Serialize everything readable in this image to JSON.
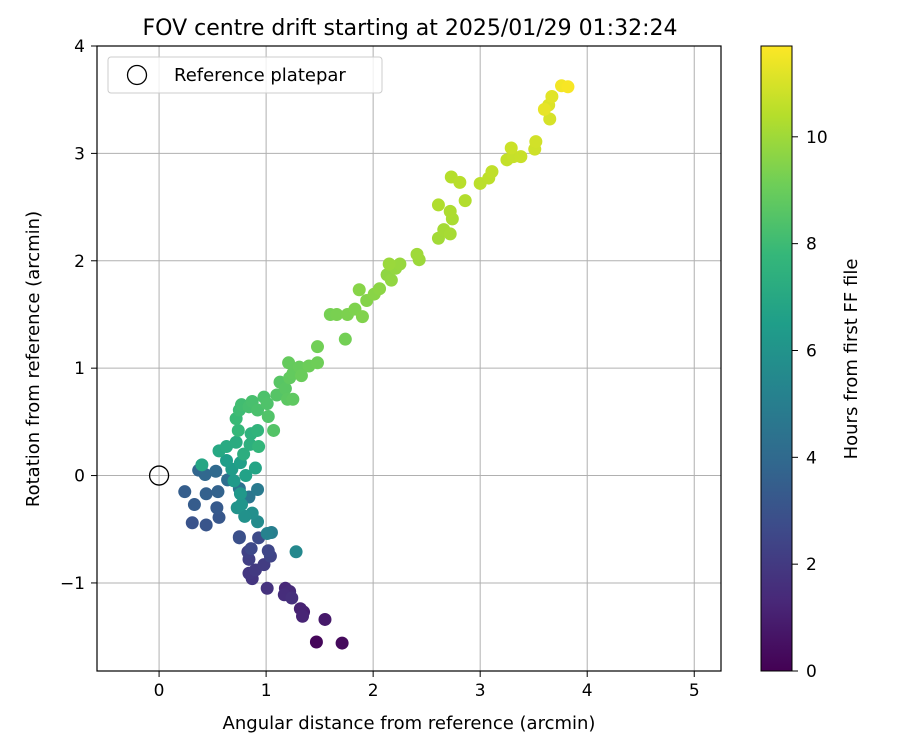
{
  "chart_data": {
    "type": "scatter",
    "title": "FOV centre drift starting at 2025/01/29 01:32:24",
    "xlabel": "Angular distance from reference (arcmin)",
    "ylabel": "Rotation from reference (arcmin)",
    "xlim": [
      -0.58,
      5.25
    ],
    "ylim": [
      -1.82,
      4.0
    ],
    "xticks": [
      0,
      1,
      2,
      3,
      4,
      5
    ],
    "yticks": [
      -1,
      0,
      1,
      2,
      3,
      4
    ],
    "grid": true,
    "legend": {
      "placement": "upper-left",
      "entries": [
        {
          "label": "Reference platepar",
          "marker": "open-circle"
        }
      ]
    },
    "reference_point": {
      "x": 0,
      "y": 0
    },
    "colorbar": {
      "label": "Hours from first FF file",
      "colormap": "viridis",
      "range": [
        0,
        11.7
      ],
      "ticks": [
        0,
        2,
        4,
        6,
        8,
        10
      ]
    },
    "points": [
      {
        "x": 1.47,
        "y": -1.55,
        "h": 0.2
      },
      {
        "x": 1.71,
        "y": -1.56,
        "h": 0.3
      },
      {
        "x": 1.55,
        "y": -1.34,
        "h": 0.8
      },
      {
        "x": 1.35,
        "y": -1.27,
        "h": 1.0
      },
      {
        "x": 1.32,
        "y": -1.24,
        "h": 1.1
      },
      {
        "x": 1.34,
        "y": -1.31,
        "h": 1.2
      },
      {
        "x": 1.18,
        "y": -1.05,
        "h": 1.3
      },
      {
        "x": 1.22,
        "y": -1.08,
        "h": 1.4
      },
      {
        "x": 1.17,
        "y": -1.11,
        "h": 1.5
      },
      {
        "x": 1.24,
        "y": -1.14,
        "h": 1.6
      },
      {
        "x": 1.01,
        "y": -1.05,
        "h": 1.7
      },
      {
        "x": 0.87,
        "y": -0.96,
        "h": 1.8
      },
      {
        "x": 0.84,
        "y": -0.91,
        "h": 1.9
      },
      {
        "x": 0.9,
        "y": -0.88,
        "h": 2.0
      },
      {
        "x": 0.98,
        "y": -0.83,
        "h": 2.1
      },
      {
        "x": 0.84,
        "y": -0.78,
        "h": 2.2
      },
      {
        "x": 0.83,
        "y": -0.71,
        "h": 2.3
      },
      {
        "x": 1.04,
        "y": -0.75,
        "h": 2.4
      },
      {
        "x": 1.02,
        "y": -0.7,
        "h": 2.5
      },
      {
        "x": 0.86,
        "y": -0.68,
        "h": 2.6
      },
      {
        "x": 0.93,
        "y": -0.58,
        "h": 2.7
      },
      {
        "x": 0.75,
        "y": -0.57,
        "h": 2.8
      },
      {
        "x": 0.75,
        "y": -0.58,
        "h": 2.9
      },
      {
        "x": 0.31,
        "y": -0.44,
        "h": 3.0
      },
      {
        "x": 0.44,
        "y": -0.46,
        "h": 3.1
      },
      {
        "x": 0.56,
        "y": -0.39,
        "h": 3.2
      },
      {
        "x": 0.54,
        "y": -0.3,
        "h": 3.3
      },
      {
        "x": 0.33,
        "y": -0.27,
        "h": 3.4
      },
      {
        "x": 0.24,
        "y": -0.15,
        "h": 3.5
      },
      {
        "x": 0.44,
        "y": -0.17,
        "h": 3.6
      },
      {
        "x": 0.55,
        "y": -0.15,
        "h": 3.7
      },
      {
        "x": 0.37,
        "y": 0.05,
        "h": 3.8
      },
      {
        "x": 0.43,
        "y": 0.01,
        "h": 3.9
      },
      {
        "x": 0.53,
        "y": 0.04,
        "h": 4.0
      },
      {
        "x": 0.64,
        "y": -0.04,
        "h": 4.2
      },
      {
        "x": 0.75,
        "y": -0.12,
        "h": 4.4
      },
      {
        "x": 0.84,
        "y": -0.2,
        "h": 4.6
      },
      {
        "x": 0.92,
        "y": -0.13,
        "h": 4.8
      },
      {
        "x": 1.05,
        "y": -0.53,
        "h": 5.0
      },
      {
        "x": 1.01,
        "y": -0.54,
        "h": 5.2
      },
      {
        "x": 1.28,
        "y": -0.71,
        "h": 5.5
      },
      {
        "x": 0.92,
        "y": -0.43,
        "h": 5.6
      },
      {
        "x": 0.87,
        "y": -0.35,
        "h": 5.8
      },
      {
        "x": 0.8,
        "y": -0.38,
        "h": 5.9
      },
      {
        "x": 0.73,
        "y": -0.3,
        "h": 6.0
      },
      {
        "x": 0.77,
        "y": -0.27,
        "h": 6.1
      },
      {
        "x": 0.76,
        "y": -0.17,
        "h": 6.2
      },
      {
        "x": 0.7,
        "y": -0.05,
        "h": 6.3
      },
      {
        "x": 0.68,
        "y": 0.06,
        "h": 6.4
      },
      {
        "x": 0.63,
        "y": 0.14,
        "h": 6.5
      },
      {
        "x": 0.76,
        "y": 0.12,
        "h": 6.6
      },
      {
        "x": 0.81,
        "y": 0.0,
        "h": 6.7
      },
      {
        "x": 0.9,
        "y": 0.07,
        "h": 6.8
      },
      {
        "x": 0.4,
        "y": 0.1,
        "h": 6.9
      },
      {
        "x": 0.56,
        "y": 0.23,
        "h": 7.0
      },
      {
        "x": 0.63,
        "y": 0.27,
        "h": 7.1
      },
      {
        "x": 0.72,
        "y": 0.31,
        "h": 7.2
      },
      {
        "x": 0.79,
        "y": 0.2,
        "h": 7.3
      },
      {
        "x": 0.85,
        "y": 0.29,
        "h": 7.4
      },
      {
        "x": 0.86,
        "y": 0.39,
        "h": 7.5
      },
      {
        "x": 0.92,
        "y": 0.42,
        "h": 7.6
      },
      {
        "x": 0.93,
        "y": 0.27,
        "h": 7.7
      },
      {
        "x": 0.74,
        "y": 0.42,
        "h": 7.8
      },
      {
        "x": 0.72,
        "y": 0.53,
        "h": 7.9
      },
      {
        "x": 0.75,
        "y": 0.61,
        "h": 8.0
      },
      {
        "x": 0.77,
        "y": 0.66,
        "h": 8.1
      },
      {
        "x": 0.84,
        "y": 0.64,
        "h": 8.2
      },
      {
        "x": 0.87,
        "y": 0.69,
        "h": 8.25
      },
      {
        "x": 0.92,
        "y": 0.61,
        "h": 8.3
      },
      {
        "x": 0.98,
        "y": 0.73,
        "h": 8.35
      },
      {
        "x": 1.01,
        "y": 0.67,
        "h": 8.4
      },
      {
        "x": 1.02,
        "y": 0.55,
        "h": 8.45
      },
      {
        "x": 1.07,
        "y": 0.42,
        "h": 8.5
      },
      {
        "x": 1.1,
        "y": 0.75,
        "h": 8.55
      },
      {
        "x": 1.13,
        "y": 0.87,
        "h": 8.6
      },
      {
        "x": 1.18,
        "y": 0.81,
        "h": 8.65
      },
      {
        "x": 1.2,
        "y": 0.71,
        "h": 8.7
      },
      {
        "x": 1.25,
        "y": 0.71,
        "h": 8.75
      },
      {
        "x": 1.22,
        "y": 0.91,
        "h": 8.8
      },
      {
        "x": 1.25,
        "y": 0.95,
        "h": 8.85
      },
      {
        "x": 1.21,
        "y": 1.05,
        "h": 8.9
      },
      {
        "x": 1.31,
        "y": 1.01,
        "h": 8.95
      },
      {
        "x": 1.33,
        "y": 0.93,
        "h": 9.0
      },
      {
        "x": 1.4,
        "y": 1.02,
        "h": 9.05
      },
      {
        "x": 1.48,
        "y": 1.05,
        "h": 9.1
      },
      {
        "x": 1.48,
        "y": 1.2,
        "h": 9.15
      },
      {
        "x": 1.74,
        "y": 1.27,
        "h": 9.2
      },
      {
        "x": 1.6,
        "y": 1.5,
        "h": 9.25
      },
      {
        "x": 1.66,
        "y": 1.5,
        "h": 9.3
      },
      {
        "x": 1.76,
        "y": 1.5,
        "h": 9.35
      },
      {
        "x": 1.83,
        "y": 1.55,
        "h": 9.4
      },
      {
        "x": 1.9,
        "y": 1.48,
        "h": 9.45
      },
      {
        "x": 1.94,
        "y": 1.63,
        "h": 9.5
      },
      {
        "x": 1.87,
        "y": 1.73,
        "h": 9.55
      },
      {
        "x": 2.01,
        "y": 1.69,
        "h": 9.6
      },
      {
        "x": 2.06,
        "y": 1.74,
        "h": 9.65
      },
      {
        "x": 2.13,
        "y": 1.87,
        "h": 9.7
      },
      {
        "x": 2.17,
        "y": 1.82,
        "h": 9.75
      },
      {
        "x": 2.21,
        "y": 1.93,
        "h": 9.8
      },
      {
        "x": 2.25,
        "y": 1.97,
        "h": 9.85
      },
      {
        "x": 2.15,
        "y": 1.97,
        "h": 9.9
      },
      {
        "x": 2.43,
        "y": 2.01,
        "h": 9.95
      },
      {
        "x": 2.41,
        "y": 2.06,
        "h": 10.0
      },
      {
        "x": 2.61,
        "y": 2.21,
        "h": 10.05
      },
      {
        "x": 2.66,
        "y": 2.29,
        "h": 10.1
      },
      {
        "x": 2.72,
        "y": 2.25,
        "h": 10.15
      },
      {
        "x": 2.74,
        "y": 2.39,
        "h": 10.2
      },
      {
        "x": 2.72,
        "y": 2.46,
        "h": 10.25
      },
      {
        "x": 2.61,
        "y": 2.52,
        "h": 10.3
      },
      {
        "x": 2.86,
        "y": 2.56,
        "h": 10.35
      },
      {
        "x": 2.73,
        "y": 2.78,
        "h": 10.4
      },
      {
        "x": 2.81,
        "y": 2.73,
        "h": 10.45
      },
      {
        "x": 3.0,
        "y": 2.72,
        "h": 10.5
      },
      {
        "x": 3.08,
        "y": 2.77,
        "h": 10.55
      },
      {
        "x": 3.11,
        "y": 2.83,
        "h": 10.6
      },
      {
        "x": 3.25,
        "y": 2.94,
        "h": 10.65
      },
      {
        "x": 3.31,
        "y": 2.97,
        "h": 10.7
      },
      {
        "x": 3.38,
        "y": 2.97,
        "h": 10.75
      },
      {
        "x": 3.29,
        "y": 3.05,
        "h": 10.8
      },
      {
        "x": 3.51,
        "y": 3.04,
        "h": 10.85
      },
      {
        "x": 3.52,
        "y": 3.11,
        "h": 10.9
      },
      {
        "x": 3.65,
        "y": 3.32,
        "h": 11.0
      },
      {
        "x": 3.64,
        "y": 3.45,
        "h": 11.1
      },
      {
        "x": 3.67,
        "y": 3.53,
        "h": 11.2
      },
      {
        "x": 3.6,
        "y": 3.41,
        "h": 11.3
      },
      {
        "x": 3.76,
        "y": 3.63,
        "h": 11.5
      },
      {
        "x": 3.82,
        "y": 3.62,
        "h": 11.6
      }
    ]
  }
}
